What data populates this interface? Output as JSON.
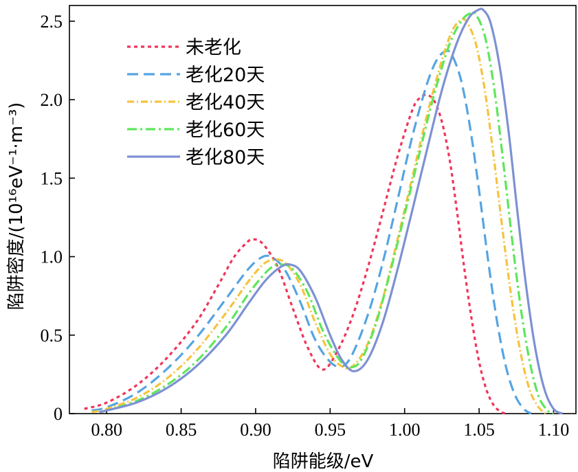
{
  "chart_data": {
    "type": "line",
    "xlabel": "陷阱能级/eV",
    "ylabel": "陷阱密度/(10¹⁶eV⁻¹·m⁻³)",
    "xlim": [
      0.775,
      1.115
    ],
    "ylim": [
      0,
      2.6
    ],
    "grid": false,
    "legend_position": "top-left",
    "x_ticks": [
      {
        "value": 0.8,
        "label": "0.80"
      },
      {
        "value": 0.85,
        "label": "0.85"
      },
      {
        "value": 0.9,
        "label": "0.90"
      },
      {
        "value": 0.95,
        "label": "0.95"
      },
      {
        "value": 1.0,
        "label": "1.00"
      },
      {
        "value": 1.05,
        "label": "1.05"
      },
      {
        "value": 1.1,
        "label": "1.10"
      }
    ],
    "y_ticks": [
      {
        "value": 0,
        "label": "0"
      },
      {
        "value": 0.5,
        "label": "0.5"
      },
      {
        "value": 1.0,
        "label": "1.0"
      },
      {
        "value": 1.5,
        "label": "1.5"
      },
      {
        "value": 2.0,
        "label": "2.0"
      },
      {
        "value": 2.5,
        "label": "2.5"
      }
    ],
    "series": [
      {
        "name": "未老化",
        "color": "#f0345a",
        "dash": "5,5",
        "x": [
          0.785,
          0.8,
          0.82,
          0.84,
          0.86,
          0.875,
          0.885,
          0.893,
          0.898,
          0.905,
          0.915,
          0.925,
          0.935,
          0.945,
          0.955,
          0.965,
          0.975,
          0.985,
          0.995,
          1.005,
          1.01,
          1.015,
          1.02,
          1.025,
          1.03,
          1.035,
          1.04,
          1.045,
          1.05,
          1.055,
          1.06,
          1.065,
          1.068
        ],
        "y": [
          0.03,
          0.07,
          0.18,
          0.35,
          0.58,
          0.82,
          0.99,
          1.08,
          1.11,
          1.08,
          0.93,
          0.67,
          0.42,
          0.28,
          0.4,
          0.62,
          0.92,
          1.27,
          1.63,
          1.93,
          2.01,
          2.03,
          1.99,
          1.86,
          1.63,
          1.3,
          0.93,
          0.6,
          0.33,
          0.15,
          0.05,
          0.01,
          0.0
        ]
      },
      {
        "name": "老化20天",
        "color": "#55a4e2",
        "dash": "16,8",
        "x": [
          0.79,
          0.8,
          0.82,
          0.84,
          0.86,
          0.88,
          0.895,
          0.905,
          0.912,
          0.92,
          0.93,
          0.94,
          0.95,
          0.958,
          0.965,
          0.975,
          0.985,
          0.995,
          1.005,
          1.015,
          1.022,
          1.028,
          1.032,
          1.038,
          1.044,
          1.05,
          1.056,
          1.062,
          1.068,
          1.074,
          1.08,
          1.085
        ],
        "y": [
          0.02,
          0.04,
          0.13,
          0.28,
          0.48,
          0.73,
          0.92,
          1.0,
          0.99,
          0.91,
          0.71,
          0.47,
          0.33,
          0.3,
          0.38,
          0.62,
          0.95,
          1.35,
          1.76,
          2.1,
          2.26,
          2.31,
          2.28,
          2.12,
          1.82,
          1.42,
          0.98,
          0.59,
          0.3,
          0.12,
          0.03,
          0.0
        ]
      },
      {
        "name": "老化40天",
        "color": "#f5c33e",
        "dash": "10,4,2,4",
        "x": [
          0.79,
          0.8,
          0.82,
          0.84,
          0.86,
          0.88,
          0.895,
          0.905,
          0.912,
          0.92,
          0.93,
          0.94,
          0.95,
          0.958,
          0.965,
          0.975,
          0.985,
          0.995,
          1.005,
          1.015,
          1.025,
          1.032,
          1.038,
          1.042,
          1.048,
          1.054,
          1.06,
          1.066,
          1.072,
          1.078,
          1.084,
          1.09,
          1.095
        ],
        "y": [
          0.01,
          0.03,
          0.1,
          0.22,
          0.4,
          0.64,
          0.84,
          0.95,
          0.98,
          0.96,
          0.82,
          0.58,
          0.38,
          0.3,
          0.3,
          0.44,
          0.72,
          1.1,
          1.5,
          1.9,
          2.25,
          2.44,
          2.51,
          2.49,
          2.35,
          2.05,
          1.62,
          1.15,
          0.72,
          0.38,
          0.15,
          0.04,
          0.0
        ]
      },
      {
        "name": "老化60天",
        "color": "#5ee65a",
        "dash": "14,5,3,5",
        "x": [
          0.795,
          0.8,
          0.82,
          0.84,
          0.86,
          0.88,
          0.895,
          0.905,
          0.912,
          0.918,
          0.925,
          0.935,
          0.945,
          0.955,
          0.962,
          0.97,
          0.98,
          0.99,
          1.0,
          1.01,
          1.02,
          1.03,
          1.038,
          1.044,
          1.048,
          1.054,
          1.06,
          1.066,
          1.072,
          1.078,
          1.084,
          1.09,
          1.096,
          1.1
        ],
        "y": [
          0.01,
          0.02,
          0.08,
          0.18,
          0.33,
          0.55,
          0.76,
          0.88,
          0.94,
          0.95,
          0.92,
          0.77,
          0.53,
          0.36,
          0.3,
          0.33,
          0.55,
          0.89,
          1.27,
          1.66,
          2.04,
          2.35,
          2.5,
          2.55,
          2.54,
          2.4,
          2.08,
          1.62,
          1.12,
          0.67,
          0.33,
          0.11,
          0.02,
          0.0
        ]
      },
      {
        "name": "老化80天",
        "color": "#7d91d3",
        "dash": "",
        "x": [
          0.795,
          0.8,
          0.82,
          0.84,
          0.86,
          0.88,
          0.895,
          0.905,
          0.912,
          0.918,
          0.923,
          0.93,
          0.94,
          0.95,
          0.958,
          0.966,
          0.975,
          0.985,
          0.995,
          1.005,
          1.015,
          1.025,
          1.035,
          1.043,
          1.049,
          1.053,
          1.058,
          1.064,
          1.07,
          1.076,
          1.082,
          1.088,
          1.094,
          1.1,
          1.106
        ],
        "y": [
          0.01,
          0.02,
          0.07,
          0.16,
          0.3,
          0.5,
          0.7,
          0.83,
          0.9,
          0.94,
          0.95,
          0.91,
          0.74,
          0.5,
          0.34,
          0.27,
          0.34,
          0.57,
          0.91,
          1.29,
          1.68,
          2.06,
          2.36,
          2.52,
          2.57,
          2.57,
          2.48,
          2.2,
          1.78,
          1.26,
          0.78,
          0.4,
          0.15,
          0.03,
          0.0
        ]
      }
    ]
  }
}
